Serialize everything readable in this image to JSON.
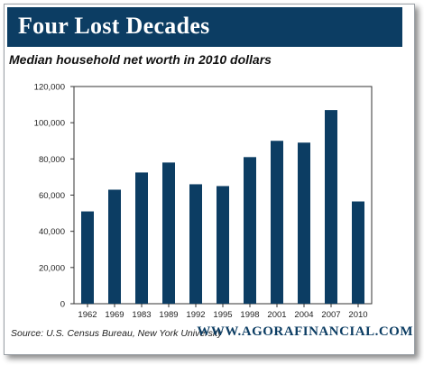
{
  "header": {
    "title": "Four Lost Decades",
    "subtitle": "Median household net worth in 2010 dollars"
  },
  "footer": {
    "source": "Source:  U.S. Census Bureau, New York University",
    "brand": "WWW.AGORAFINANCIAL.COM"
  },
  "colors": {
    "bar": "#0c3d63",
    "title_bg": "#0c3d63"
  },
  "chart_data": {
    "type": "bar",
    "title": "Median household net worth in 2010 dollars",
    "xlabel": "",
    "ylabel": "",
    "categories": [
      "1962",
      "1969",
      "1983",
      "1989",
      "1992",
      "1995",
      "1998",
      "2001",
      "2004",
      "2007",
      "2010"
    ],
    "values": [
      51000,
      63000,
      72500,
      78000,
      66000,
      65000,
      81000,
      90000,
      89000,
      107000,
      56500
    ],
    "ylim": [
      0,
      120000
    ],
    "yticks": [
      0,
      20000,
      40000,
      60000,
      80000,
      100000,
      120000
    ],
    "ytick_labels": [
      "0",
      "20,000",
      "40,000",
      "60,000",
      "80,000",
      "100,000",
      "120,000"
    ],
    "grid": false,
    "legend": "none"
  }
}
